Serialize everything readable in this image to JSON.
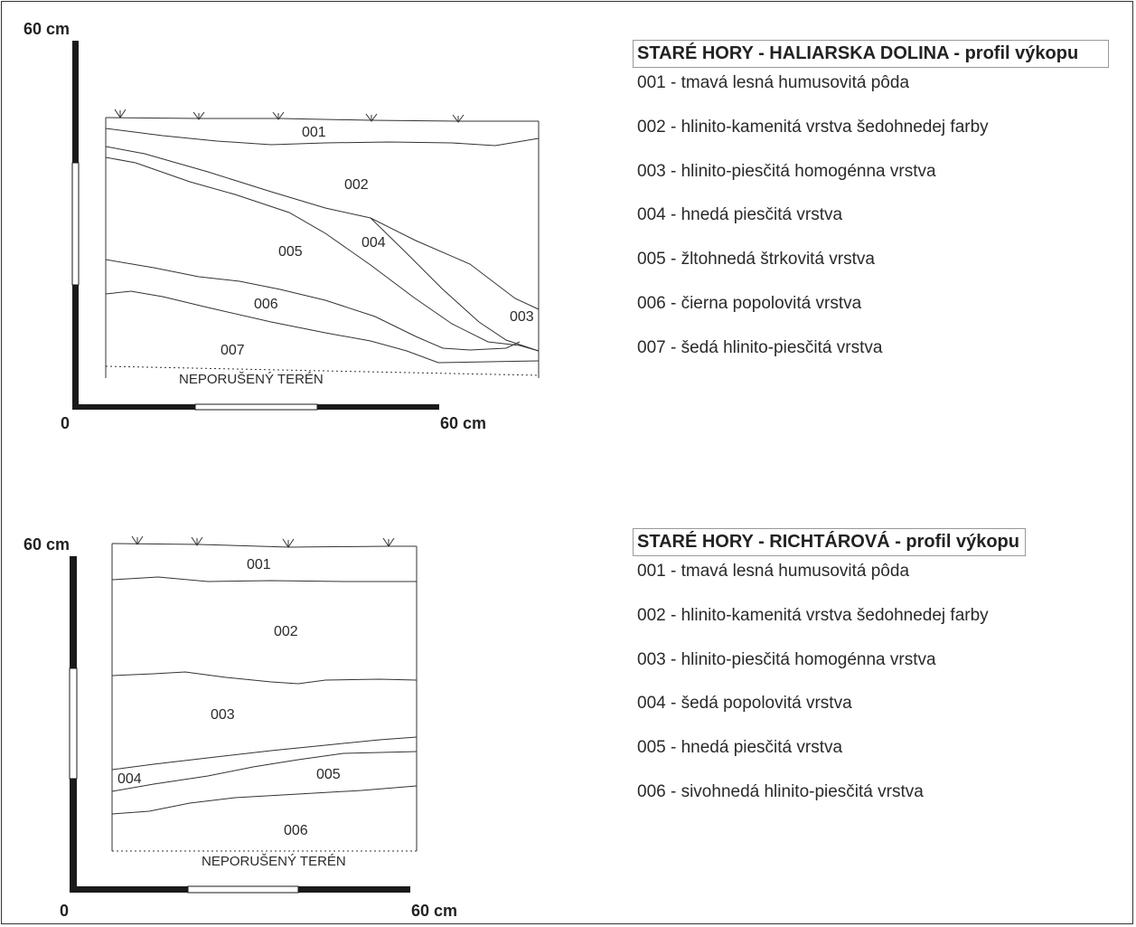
{
  "profiles": [
    {
      "title": "STARÉ HORY - HALIARSKA DOLINA - profil výkopu",
      "scale": {
        "top_label": "60 cm",
        "origin_label": "0",
        "right_label": "60 cm"
      },
      "layer_labels": [
        "001",
        "002",
        "004",
        "005",
        "006",
        "007",
        "003"
      ],
      "base_label": "NEPORUŠENÝ TERÉN",
      "legend": [
        "001 - tmavá lesná humusovitá pôda",
        "002 - hlinito-kamenitá vrstva šedohnedej farby",
        "003 - hlinito-piesčitá homogénna vrstva",
        "004 - hnedá piesčitá vrstva",
        "005 - žltohnedá štrkovitá vrstva",
        "006 - čierna popolovitá vrstva",
        "007 - šedá hlinito-piesčitá vrstva"
      ]
    },
    {
      "title": "STARÉ HORY - RICHTÁROVÁ - profil výkopu",
      "scale": {
        "top_label": "60 cm",
        "origin_label": "0",
        "right_label": "60 cm"
      },
      "layer_labels": [
        "001",
        "002",
        "003",
        "004",
        "005",
        "006"
      ],
      "base_label": "NEPORUŠENÝ TERÉN",
      "legend": [
        "001 - tmavá lesná humusovitá pôda",
        "002 - hlinito-kamenitá vrstva šedohnedej farby",
        "003 - hlinito-piesčitá homogénna vrstva",
        "004 - šedá popolovitá vrstva",
        "005 - hnedá piesčitá vrstva",
        "006 - sivohnedá hlinito-piesčitá vrstva"
      ]
    }
  ]
}
